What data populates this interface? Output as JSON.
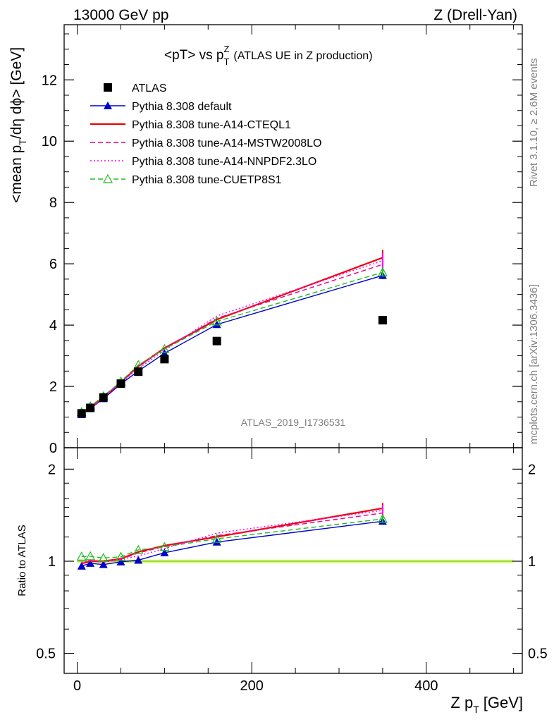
{
  "header": {
    "left": "13000 GeV pp",
    "right": "Z (Drell-Yan)"
  },
  "side_text": {
    "rivet": "Rivet 3.1.10, ≥ 2.6M events",
    "mcplots": "mcplots.cern.ch [arXiv:1306.3436]"
  },
  "analysis_id": "ATLAS_2019_I1736531",
  "chart_data": [
    {
      "type": "line",
      "title": "<pT> vs pTZ (ATLAS UE in Z production)",
      "title_parts": {
        "main": "<pT> vs p",
        "sub": "T",
        "sup": "Z",
        "rest": "(ATLAS UE in Z production)"
      },
      "ylabel": "<mean pT/dη dϕ> [GeV]",
      "ylabel_parts": {
        "a": "<mean p",
        "sub": "T",
        "b": "/dη dϕ> [GeV]"
      },
      "xlim": [
        -15,
        510
      ],
      "ylim": [
        0,
        13.8
      ],
      "yticks": [
        0,
        2,
        4,
        6,
        8,
        10,
        12
      ],
      "legend_position": "top-left",
      "x": [
        5,
        15,
        30,
        50,
        70,
        100,
        160,
        350
      ],
      "series": [
        {
          "name": "ATLAS",
          "color": "#000000",
          "marker": "square",
          "values": [
            1.12,
            1.3,
            1.64,
            2.09,
            2.48,
            2.89,
            3.48,
            4.16
          ]
        },
        {
          "name": "Pythia 8.308 default",
          "color": "#0000cc",
          "marker": "triangle",
          "dash": "solid",
          "values": [
            1.08,
            1.28,
            1.6,
            2.08,
            2.5,
            3.08,
            4.02,
            5.62
          ],
          "errors": [
            0,
            0,
            0,
            0,
            0,
            0,
            0,
            0.12
          ]
        },
        {
          "name": "Pythia 8.308 tune-A14-CTEQL1",
          "color": "#ee0000",
          "marker": "none",
          "dash": "solid",
          "values": [
            1.1,
            1.3,
            1.64,
            2.13,
            2.66,
            3.25,
            4.18,
            6.2
          ],
          "errors": [
            0,
            0,
            0,
            0,
            0,
            0,
            0,
            0.25
          ]
        },
        {
          "name": "Pythia 8.308 tune-A14-MSTW2008LO",
          "color": "#ee0088",
          "marker": "none",
          "dash": "dashed",
          "values": [
            1.1,
            1.3,
            1.63,
            2.12,
            2.64,
            3.23,
            4.22,
            5.98
          ],
          "errors": [
            0,
            0,
            0,
            0,
            0,
            0,
            0,
            0.22
          ]
        },
        {
          "name": "Pythia 8.308 tune-A14-NNPDF2.3LO",
          "color": "#ff00ff",
          "marker": "none",
          "dash": "dotted",
          "values": [
            1.11,
            1.31,
            1.64,
            2.12,
            2.58,
            3.18,
            4.3,
            6.1
          ],
          "errors": [
            0,
            0,
            0,
            0,
            0,
            0,
            0,
            0.24
          ]
        },
        {
          "name": "Pythia 8.308 tune-CUETP8S1",
          "color": "#22bb22",
          "marker": "open-triangle",
          "dash": "dashed",
          "values": [
            1.16,
            1.35,
            1.68,
            2.16,
            2.7,
            3.22,
            4.12,
            5.72
          ],
          "errors": [
            0,
            0,
            0,
            0,
            0,
            0,
            0,
            0.14
          ]
        }
      ]
    },
    {
      "type": "line",
      "ylabel": "Ratio to ATLAS",
      "xlabel": "Z pT [GeV]",
      "xlabel_parts": {
        "a": "Z p",
        "sub": "T",
        "b": "[GeV]"
      },
      "y_scale": "log",
      "ylim": [
        0.43,
        2.35
      ],
      "yticks": [
        0.5,
        1,
        2
      ],
      "ytick_labels": [
        "0.5",
        "1",
        "2"
      ],
      "xticks": [
        0,
        200,
        400
      ],
      "xlim": [
        -15,
        510
      ],
      "reference_band": {
        "value": 1,
        "color": "#ccff66"
      }
    }
  ]
}
